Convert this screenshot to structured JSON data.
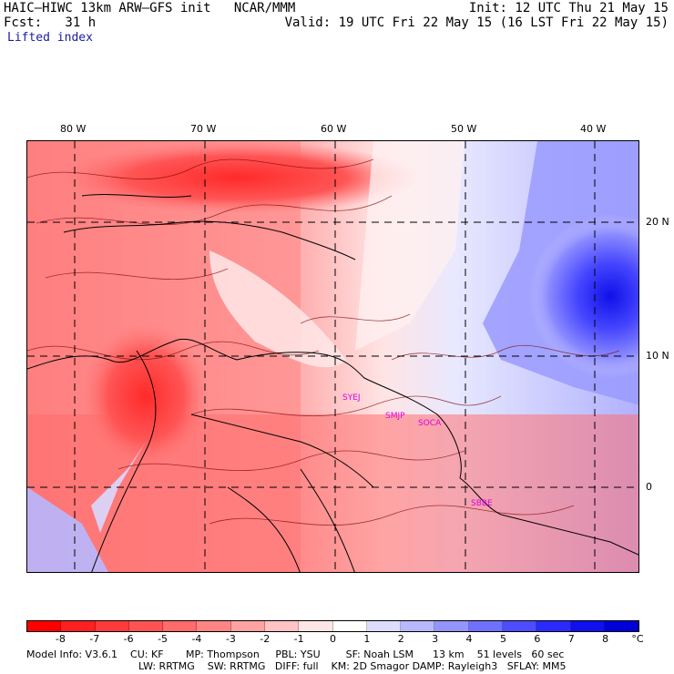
{
  "header": {
    "title_left": "HAIC–HIWC 13km ARW–GFS init   NCAR/MMM",
    "forecast": "Fcst:   31 h",
    "field": "Lifted index",
    "init": "Init: 12 UTC Thu 21 May 15",
    "valid": "Valid: 19 UTC Fri 22 May 15 (16 LST Fri 22 May 15)"
  },
  "axes": {
    "lon_labels": [
      "80 W",
      "70 W",
      "60 W",
      "50 W",
      "40 W"
    ],
    "lat_labels": [
      "20 N",
      "10 N",
      "0"
    ]
  },
  "stations": [
    "SYEJ",
    "SMJP",
    "SOCA",
    "SBBE"
  ],
  "colorbar": {
    "labels": [
      "-8",
      "-7",
      "-6",
      "-5",
      "-4",
      "-3",
      "-2",
      "-1",
      "0",
      "1",
      "2",
      "3",
      "4",
      "5",
      "6",
      "7",
      "8"
    ],
    "unit": "°C",
    "colors": [
      "#ff0000",
      "#ff2020",
      "#ff3a3a",
      "#ff5252",
      "#ff6a6a",
      "#ff8585",
      "#ffa2a2",
      "#ffc3c3",
      "#ffe6e6",
      "#ffffff",
      "#dcdcff",
      "#b8b8ff",
      "#9494ff",
      "#7070ff",
      "#4d4dff",
      "#2a2aff",
      "#0f0ff0",
      "#0000d8"
    ]
  },
  "model_info": {
    "line1": "Model Info: V3.6.1    CU: KF       MP: Thompson     PBL: YSU        SF: Noah LSM      13 km    51 levels   60 sec",
    "line2": "LW: RRTMG    SW: RRTMG   DIFF: full    KM: 2D Smagor DAMP: Rayleigh3   SFLAY: MM5"
  }
}
